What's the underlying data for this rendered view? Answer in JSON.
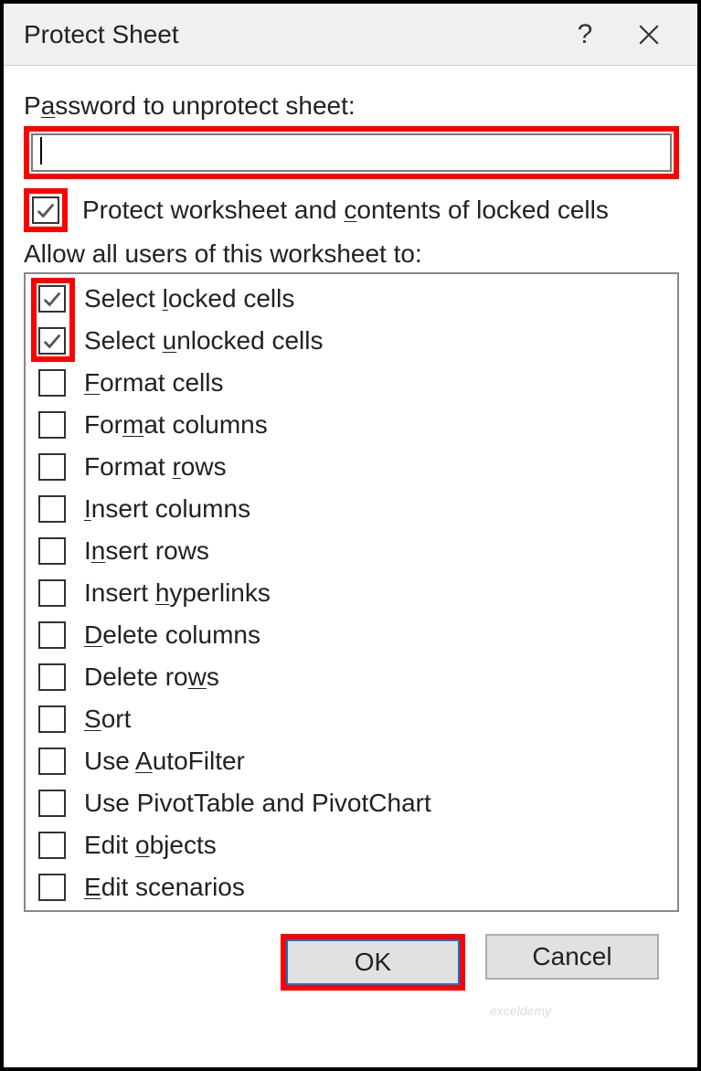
{
  "dialog": {
    "title": "Protect Sheet",
    "password_label_pre": "P",
    "password_label_u": "a",
    "password_label_post": "ssword to unprotect sheet:",
    "password_value": "",
    "protect_checkbox": {
      "checked": true,
      "label_pre": "Protect worksheet and ",
      "label_u": "c",
      "label_post": "ontents of locked cells"
    },
    "allow_label": "Allow all users of this worksheet to:",
    "permissions": [
      {
        "checked": true,
        "pre": "Select ",
        "u": "l",
        "post": "ocked cells"
      },
      {
        "checked": true,
        "pre": "Select ",
        "u": "u",
        "post": "nlocked cells"
      },
      {
        "checked": false,
        "pre": "",
        "u": "F",
        "post": "ormat cells"
      },
      {
        "checked": false,
        "pre": "For",
        "u": "m",
        "post": "at columns"
      },
      {
        "checked": false,
        "pre": "Format ",
        "u": "r",
        "post": "ows"
      },
      {
        "checked": false,
        "pre": "",
        "u": "I",
        "post": "nsert columns"
      },
      {
        "checked": false,
        "pre": "I",
        "u": "n",
        "post": "sert rows"
      },
      {
        "checked": false,
        "pre": "Insert ",
        "u": "h",
        "post": "yperlinks"
      },
      {
        "checked": false,
        "pre": "",
        "u": "D",
        "post": "elete columns"
      },
      {
        "checked": false,
        "pre": "Delete ro",
        "u": "w",
        "post": "s"
      },
      {
        "checked": false,
        "pre": "",
        "u": "S",
        "post": "ort"
      },
      {
        "checked": false,
        "pre": "Use ",
        "u": "A",
        "post": "utoFilter"
      },
      {
        "checked": false,
        "pre": "Use PivotTable and PivotChart",
        "u": "",
        "post": ""
      },
      {
        "checked": false,
        "pre": "Edit ",
        "u": "o",
        "post": "bjects"
      },
      {
        "checked": false,
        "pre": "",
        "u": "E",
        "post": "dit scenarios"
      }
    ],
    "ok_label": "OK",
    "cancel_label": "Cancel"
  },
  "highlight_color": "#ff0000",
  "watermark": "exceldemy"
}
